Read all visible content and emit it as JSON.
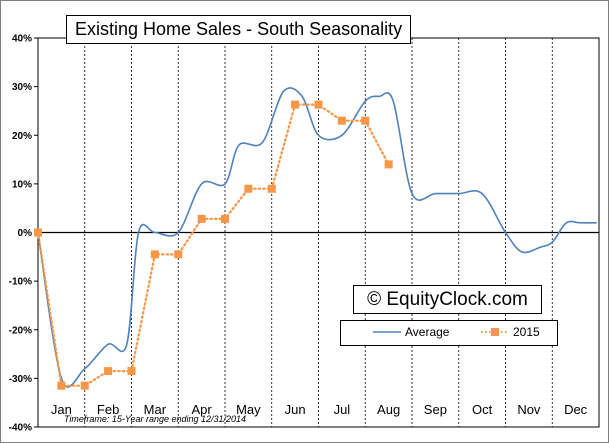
{
  "chart_data": {
    "type": "line",
    "title": "Existing Home Sales - South Seasonality",
    "xlabel": "",
    "ylabel": "",
    "ylim": [
      -40,
      40
    ],
    "yticks": [
      -40,
      -30,
      -20,
      -10,
      0,
      10,
      20,
      30,
      40
    ],
    "ytick_labels": [
      "-40%",
      "-30%",
      "-20%",
      "-10%",
      "0%",
      "10%",
      "20%",
      "30%",
      "40%"
    ],
    "xlim": [
      0,
      12
    ],
    "categories": [
      "Jan",
      "Feb",
      "Mar",
      "Apr",
      "May",
      "Jun",
      "Jul",
      "Aug",
      "Sep",
      "Oct",
      "Nov",
      "Dec"
    ],
    "grid": "vertical dashed at month boundaries, solid zero line",
    "legend_position": "bottom-right",
    "series": [
      {
        "name": "Average",
        "color": "#4f81bd",
        "style": "smooth-line",
        "x": [
          0,
          0.5,
          1,
          1.5,
          1.9,
          2.15,
          2.5,
          3,
          3.5,
          4,
          4.3,
          4.8,
          5.25,
          5.65,
          6,
          6.5,
          7,
          7.3,
          7.6,
          8,
          8.5,
          9,
          9.5,
          10,
          10.35,
          10.75,
          11,
          11.3,
          11.6,
          11.95
        ],
        "y": [
          0,
          -30,
          -28,
          -23,
          -23,
          0,
          0,
          0,
          10,
          10,
          18,
          18.5,
          29,
          28,
          20,
          20,
          27,
          28,
          27,
          8,
          8,
          8,
          8,
          0,
          -4,
          -3,
          -2,
          2,
          2,
          2
        ]
      },
      {
        "name": "2015",
        "color": "#f79646",
        "style": "dotted-line-square-markers",
        "x": [
          0,
          0.5,
          1,
          1.5,
          2,
          2.5,
          3,
          3.5,
          4,
          4.5,
          5,
          5.5,
          6,
          6.5,
          7,
          7.5
        ],
        "y": [
          0,
          -31.5,
          -31.5,
          -28.5,
          -28.5,
          -4.5,
          -4.5,
          2.8,
          2.8,
          9,
          9,
          26.3,
          26.3,
          23,
          23,
          14
        ]
      }
    ]
  },
  "watermark": "© EquityClock.com",
  "footnote": "Timeframe: 15-Year range ending  12/31/2014"
}
